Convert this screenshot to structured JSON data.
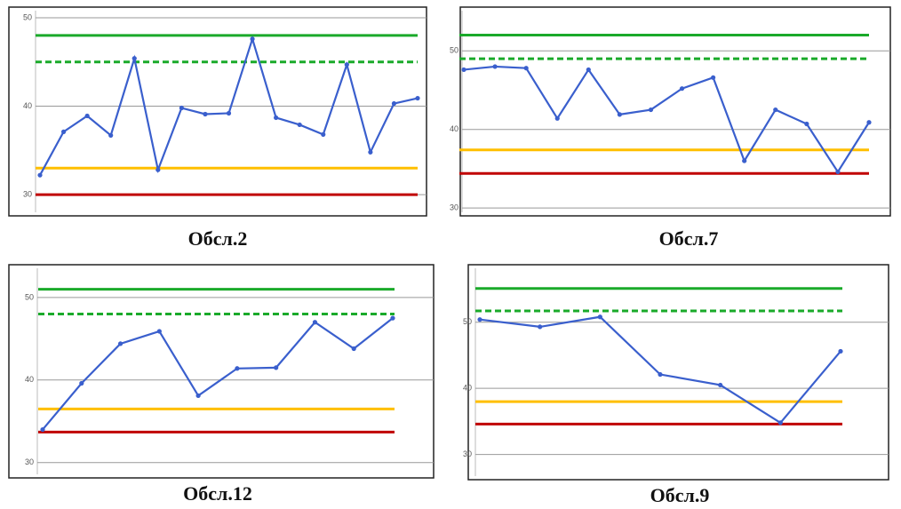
{
  "chart_data": [
    {
      "type": "line",
      "title": "Обсл.2",
      "categories": [
        null,
        null,
        null,
        null,
        null,
        null,
        null,
        null,
        null,
        null,
        null,
        null,
        null,
        null,
        null,
        null,
        null
      ],
      "series": [
        {
          "color": "#3a5fcd",
          "values": [
            32.2,
            37.1,
            38.9,
            36.7,
            45.4,
            32.8,
            39.8,
            39.1,
            39.2,
            47.6,
            38.7,
            37.9,
            36.8,
            44.7,
            34.8,
            40.3,
            40.9
          ]
        }
      ],
      "reference_lines": [
        {
          "value": 48,
          "color": "#1aaa2a",
          "dashed": false
        },
        {
          "value": 45,
          "color": "#1aaa2a",
          "dashed": true
        },
        {
          "value": 33,
          "color": "#ffbf00",
          "dashed": false
        },
        {
          "value": 30,
          "color": "#c00000",
          "dashed": false
        }
      ],
      "ylim": [
        28,
        51
      ],
      "yticks": [
        30,
        40,
        50
      ],
      "grid": true
    },
    {
      "type": "line",
      "title": "Обсл.7",
      "categories": [
        null,
        null,
        null,
        null,
        null,
        null,
        null,
        null,
        null,
        null,
        null,
        null,
        null,
        null
      ],
      "series": [
        {
          "color": "#3a5fcd",
          "values": [
            47.6,
            48,
            47.8,
            41.4,
            47.6,
            41.9,
            42.5,
            45.2,
            46.6,
            36,
            42.5,
            40.7,
            34.6,
            40.9
          ]
        }
      ],
      "reference_lines": [
        {
          "value": 52,
          "color": "#1aaa2a",
          "dashed": false
        },
        {
          "value": 49,
          "color": "#1aaa2a",
          "dashed": true
        },
        {
          "value": 37.4,
          "color": "#ffbf00",
          "dashed": false
        },
        {
          "value": 34.4,
          "color": "#c00000",
          "dashed": false
        }
      ],
      "ylim": [
        29,
        55
      ],
      "yticks": [
        30,
        40,
        50
      ],
      "grid": true
    },
    {
      "type": "line",
      "title": "Обсл.12",
      "categories": [
        null,
        null,
        null,
        null,
        null,
        null,
        null,
        null,
        null,
        null
      ],
      "series": [
        {
          "color": "#3a5fcd",
          "values": [
            34,
            39.6,
            44.4,
            45.9,
            38.1,
            41.4,
            41.5,
            47,
            43.8,
            47.5
          ]
        }
      ],
      "reference_lines": [
        {
          "value": 51,
          "color": "#1aaa2a",
          "dashed": false
        },
        {
          "value": 48,
          "color": "#1aaa2a",
          "dashed": true
        },
        {
          "value": 36.5,
          "color": "#ffbf00",
          "dashed": false
        },
        {
          "value": 33.7,
          "color": "#c00000",
          "dashed": false
        }
      ],
      "ylim": [
        29,
        53
      ],
      "yticks": [
        30,
        40,
        50
      ],
      "grid": true
    },
    {
      "type": "line",
      "title": "Обсл.9",
      "categories": [
        null,
        null,
        null,
        null,
        null,
        null,
        null
      ],
      "series": [
        {
          "color": "#3a5fcd",
          "values": [
            50.4,
            49.3,
            50.8,
            42.1,
            40.5,
            34.8,
            45.6
          ]
        }
      ],
      "reference_lines": [
        {
          "value": 55.1,
          "color": "#1aaa2a",
          "dashed": false
        },
        {
          "value": 51.7,
          "color": "#1aaa2a",
          "dashed": true
        },
        {
          "value": 38,
          "color": "#ffbf00",
          "dashed": false
        },
        {
          "value": 34.6,
          "color": "#c00000",
          "dashed": false
        }
      ],
      "ylim": [
        27,
        56
      ],
      "yticks": [
        30,
        40,
        50
      ],
      "grid": true
    }
  ]
}
